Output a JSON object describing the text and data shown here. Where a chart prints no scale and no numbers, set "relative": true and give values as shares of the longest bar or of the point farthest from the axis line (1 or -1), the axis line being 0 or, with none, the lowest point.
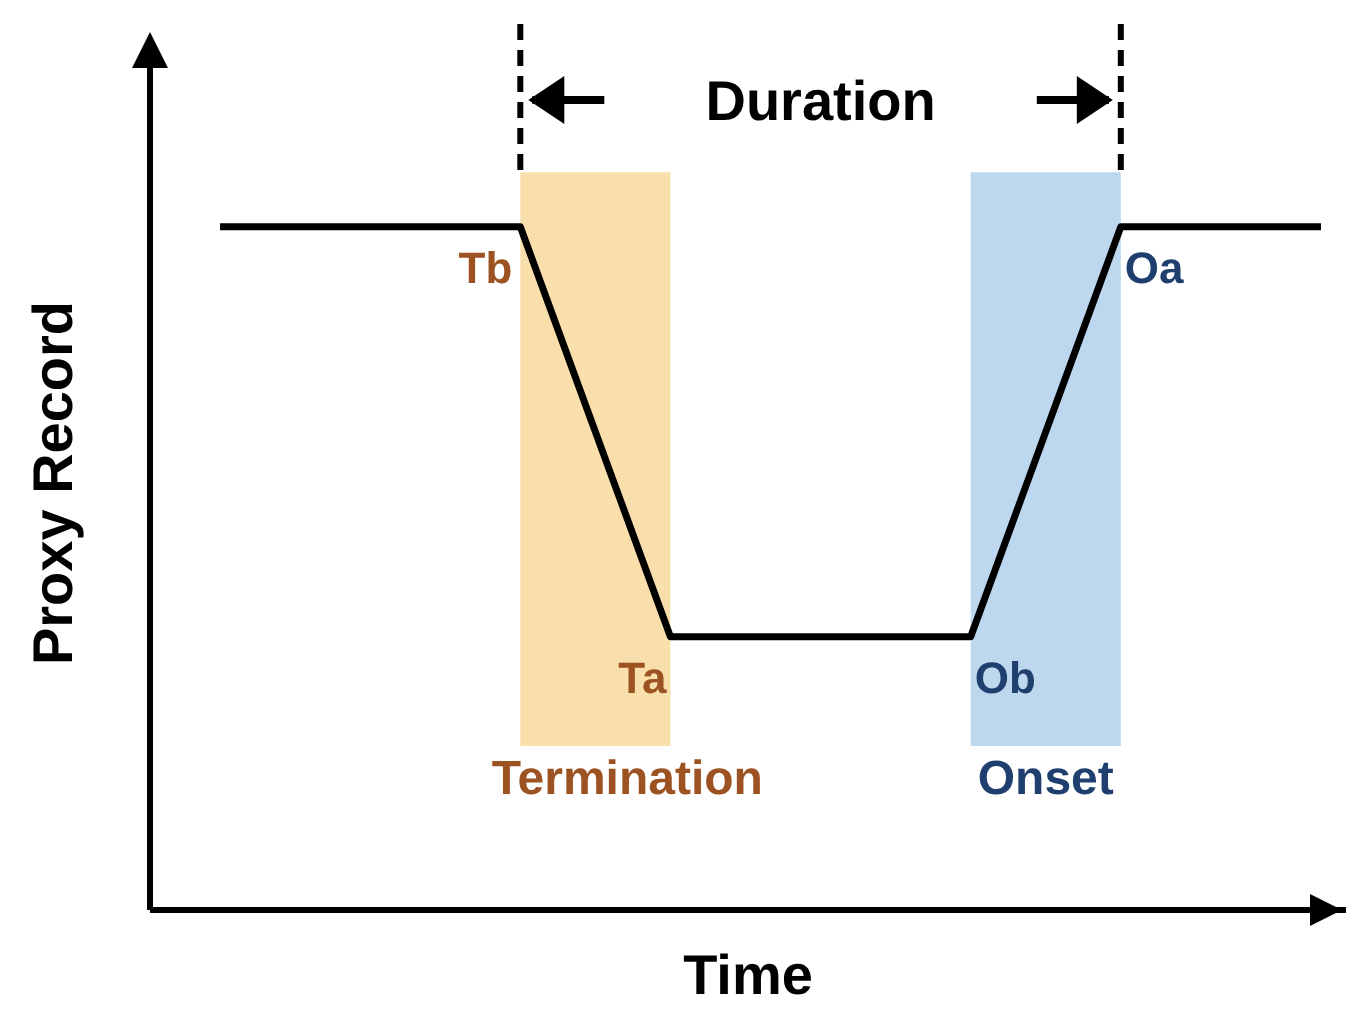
{
  "chart_data": {
    "type": "line",
    "relative": true,
    "xlabel": "Time",
    "ylabel": "Proxy Record",
    "categories": [
      null,
      null,
      null,
      null,
      null,
      null,
      null,
      null,
      null,
      null,
      null,
      null,
      null,
      null,
      null,
      null,
      null,
      null,
      null,
      null,
      null,
      null,
      null
    ],
    "series": [
      {
        "color": "#000000",
        "values": [
          1,
          1,
          1,
          1,
          1,
          1,
          1,
          0.8,
          0.6,
          0.4,
          0.4,
          0.4,
          0.4,
          0.4,
          0.4,
          0.4,
          0.6,
          0.8,
          1,
          1,
          1,
          1,
          1
        ]
      }
    ],
    "marker": "none",
    "line_style": "solid",
    "annotations": [
      "Tb",
      "Ta",
      "Ob",
      "Oa",
      "Duration",
      "Termination",
      "Onset"
    ]
  }
}
